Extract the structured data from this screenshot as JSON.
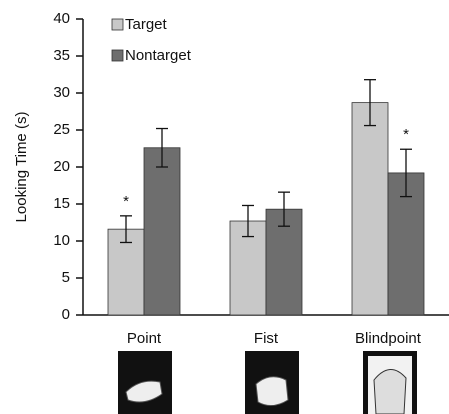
{
  "chart_data": {
    "type": "bar",
    "y_label": "Looking Time (s)",
    "categories": [
      "Point",
      "Fist",
      "Blindpoint"
    ],
    "series": [
      {
        "name": "Target",
        "color": "#c8c8c8",
        "values": [
          11.6,
          12.7,
          28.7
        ],
        "errors": [
          1.8,
          2.1,
          3.1
        ]
      },
      {
        "name": "Nontarget",
        "color": "#6e6e6e",
        "values": [
          22.6,
          14.3,
          19.2
        ],
        "errors": [
          2.6,
          2.3,
          3.2
        ]
      }
    ],
    "annotations": [
      "*",
      "*"
    ],
    "ylim": [
      0,
      40
    ],
    "yticks": [
      0,
      5,
      10,
      15,
      20,
      25,
      30,
      35,
      40
    ],
    "grid": false,
    "legend": "top-left"
  }
}
